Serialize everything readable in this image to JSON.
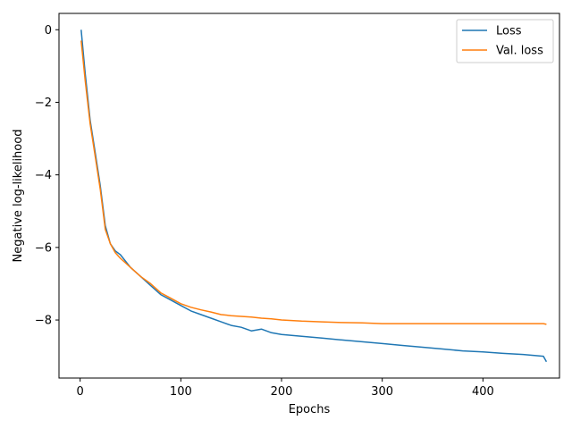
{
  "chart_data": {
    "type": "line",
    "title": "",
    "xlabel": "Epochs",
    "ylabel": "Negative log-likelihood",
    "xlim": [
      -21,
      476
    ],
    "ylim": [
      -9.6,
      0.45
    ],
    "xticks": [
      0,
      100,
      200,
      300,
      400
    ],
    "yticks": [
      0,
      -2,
      -4,
      -6,
      -8
    ],
    "grid": false,
    "legend_position": "top-right",
    "series": [
      {
        "name": "Loss",
        "color": "#1f77b4",
        "x": [
          1,
          5,
          10,
          15,
          20,
          25,
          30,
          35,
          40,
          50,
          60,
          70,
          80,
          90,
          100,
          110,
          120,
          130,
          140,
          150,
          160,
          170,
          180,
          190,
          200,
          220,
          240,
          260,
          280,
          300,
          320,
          340,
          360,
          380,
          400,
          420,
          440,
          460,
          463
        ],
        "y": [
          0.0,
          -1.2,
          -2.5,
          -3.4,
          -4.3,
          -5.4,
          -5.9,
          -6.1,
          -6.2,
          -6.55,
          -6.8,
          -7.05,
          -7.3,
          -7.45,
          -7.6,
          -7.75,
          -7.85,
          -7.95,
          -8.05,
          -8.15,
          -8.2,
          -8.3,
          -8.25,
          -8.35,
          -8.4,
          -8.45,
          -8.5,
          -8.55,
          -8.6,
          -8.65,
          -8.7,
          -8.75,
          -8.8,
          -8.85,
          -8.88,
          -8.92,
          -8.95,
          -9.0,
          -9.15
        ]
      },
      {
        "name": "Val. loss",
        "color": "#ff7f0e",
        "x": [
          1,
          5,
          10,
          15,
          20,
          25,
          30,
          35,
          40,
          50,
          60,
          70,
          80,
          90,
          100,
          110,
          120,
          130,
          140,
          150,
          160,
          170,
          180,
          190,
          200,
          220,
          240,
          260,
          280,
          300,
          320,
          340,
          360,
          380,
          400,
          420,
          440,
          460,
          463
        ],
        "y": [
          -0.3,
          -1.4,
          -2.6,
          -3.5,
          -4.4,
          -5.5,
          -5.9,
          -6.15,
          -6.3,
          -6.55,
          -6.8,
          -7.0,
          -7.25,
          -7.4,
          -7.55,
          -7.65,
          -7.72,
          -7.78,
          -7.85,
          -7.88,
          -7.9,
          -7.92,
          -7.95,
          -7.97,
          -8.0,
          -8.03,
          -8.05,
          -8.07,
          -8.08,
          -8.1,
          -8.1,
          -8.1,
          -8.1,
          -8.1,
          -8.1,
          -8.1,
          -8.1,
          -8.1,
          -8.12
        ]
      }
    ]
  }
}
